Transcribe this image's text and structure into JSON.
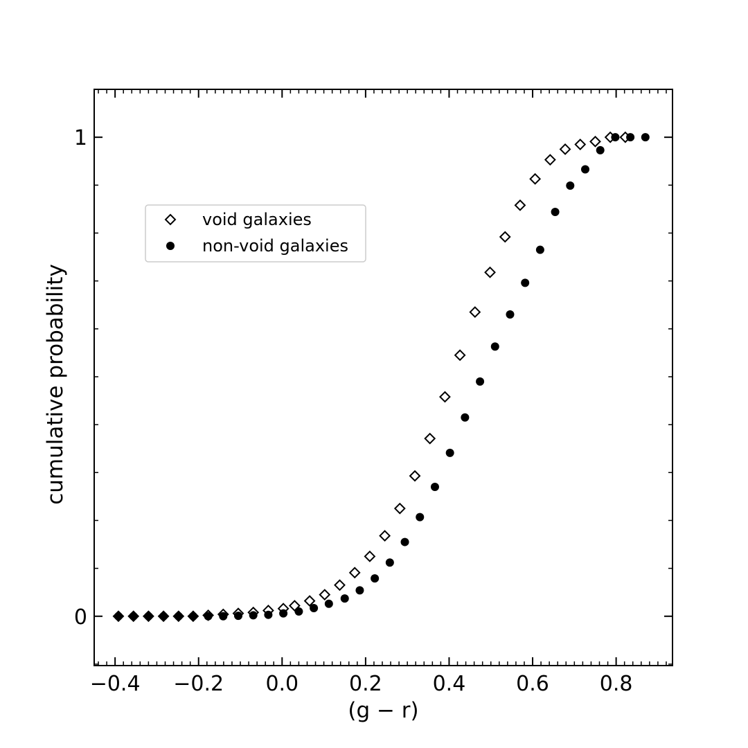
{
  "chart_data": {
    "type": "scatter",
    "title": "",
    "xlabel": "(g − r)",
    "ylabel": "cumulative probability",
    "xlim": [
      -0.45,
      0.935
    ],
    "ylim": [
      -0.103,
      1.1
    ],
    "x_ticks": [
      -0.4,
      -0.2,
      0.0,
      0.2,
      0.4,
      0.6,
      0.8
    ],
    "x_tick_labels": [
      "−0.4",
      "−0.2",
      "0.0",
      "0.2",
      "0.4",
      "0.6",
      "0.8"
    ],
    "y_ticks": [
      0,
      1
    ],
    "y_tick_labels": [
      "0",
      "1"
    ],
    "grid": false,
    "legend_position": "upper-left",
    "series": [
      {
        "name": "void galaxies",
        "marker": "open-diamond",
        "color": "#000000",
        "x": [
          -0.392,
          -0.356,
          -0.32,
          -0.284,
          -0.248,
          -0.213,
          -0.177,
          -0.141,
          -0.105,
          -0.069,
          -0.033,
          0.003,
          0.03,
          0.066,
          0.102,
          0.138,
          0.174,
          0.21,
          0.246,
          0.282,
          0.318,
          0.354,
          0.39,
          0.426,
          0.462,
          0.498,
          0.534,
          0.57,
          0.606,
          0.642,
          0.678,
          0.714,
          0.75,
          0.786,
          0.822
        ],
        "y": [
          0.0,
          0.0,
          0.0,
          0.0,
          0.0,
          0.0,
          0.002,
          0.004,
          0.006,
          0.008,
          0.012,
          0.016,
          0.022,
          0.032,
          0.045,
          0.065,
          0.091,
          0.125,
          0.168,
          0.225,
          0.293,
          0.371,
          0.458,
          0.545,
          0.635,
          0.718,
          0.792,
          0.858,
          0.913,
          0.953,
          0.975,
          0.985,
          0.991,
          1.0,
          1.0
        ]
      },
      {
        "name": "non-void galaxies",
        "marker": "filled-circle",
        "color": "#000000",
        "x": [
          -0.392,
          -0.356,
          -0.32,
          -0.284,
          -0.248,
          -0.213,
          -0.177,
          -0.141,
          -0.105,
          -0.069,
          -0.033,
          0.003,
          0.04,
          0.076,
          0.112,
          0.15,
          0.186,
          0.222,
          0.258,
          0.294,
          0.33,
          0.366,
          0.402,
          0.438,
          0.474,
          0.51,
          0.546,
          0.582,
          0.618,
          0.654,
          0.69,
          0.726,
          0.762,
          0.798,
          0.834,
          0.87
        ],
        "y": [
          0.0,
          0.0,
          0.0,
          0.0,
          0.0,
          0.0,
          0.0,
          0.0,
          0.001,
          0.002,
          0.003,
          0.006,
          0.01,
          0.017,
          0.026,
          0.037,
          0.054,
          0.079,
          0.112,
          0.155,
          0.207,
          0.27,
          0.341,
          0.415,
          0.49,
          0.563,
          0.63,
          0.696,
          0.765,
          0.844,
          0.899,
          0.933,
          0.973,
          1.0,
          1.0,
          1.0
        ]
      }
    ]
  }
}
